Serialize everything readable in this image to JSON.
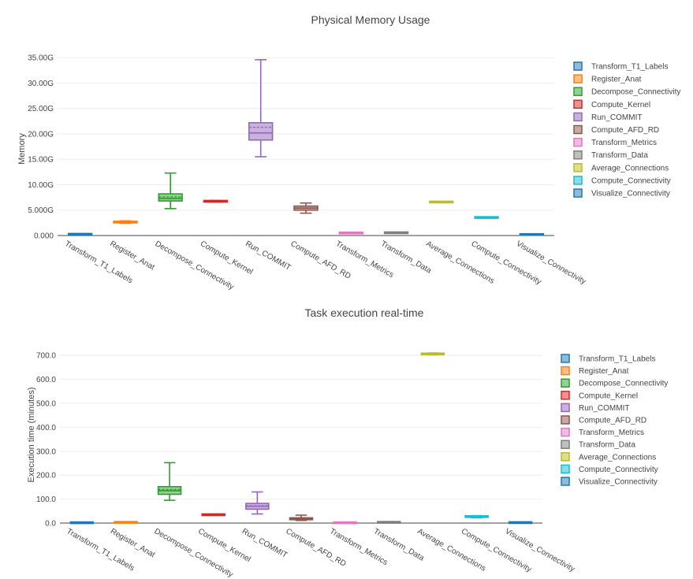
{
  "chart_data": [
    {
      "type": "box",
      "title": "Physical Memory Usage",
      "xlabel": "",
      "ylabel": "Memory",
      "ylim": [
        0,
        35.5
      ],
      "ytick_values": [
        0,
        5,
        10,
        15,
        20,
        25,
        30,
        35
      ],
      "ytick_labels": [
        "0.000",
        "5.000G",
        "10.00G",
        "15.00G",
        "20.00G",
        "25.00G",
        "30.00G",
        "35.00G"
      ],
      "grid": true,
      "legend_position": "right",
      "categories": [
        "Transform_T1_Labels",
        "Register_Anat",
        "Decompose_Connectivity",
        "Compute_Kernel",
        "Run_COMMIT",
        "Compute_AFD_RD",
        "Transform_Metrics",
        "Transform_Data",
        "Average_Connections",
        "Compute_Connectivity",
        "Visualize_Connectivity"
      ],
      "colors": [
        "#1f77b4",
        "#ff7f0e",
        "#2ca02c",
        "#d62728",
        "#9467bd",
        "#8c564b",
        "#e377c2",
        "#7f7f7f",
        "#bcbd22",
        "#17becf",
        "#1f77b4"
      ],
      "series": [
        {
          "name": "Transform_T1_Labels",
          "min": 0.15,
          "q1": 0.2,
          "median": 0.25,
          "mean": 0.25,
          "q3": 0.3,
          "max": 0.35
        },
        {
          "name": "Register_Anat",
          "min": 2.4,
          "q1": 2.55,
          "median": 2.65,
          "mean": 2.65,
          "q3": 2.75,
          "max": 2.9
        },
        {
          "name": "Decompose_Connectivity",
          "min": 5.3,
          "q1": 6.8,
          "median": 7.3,
          "mean": 7.6,
          "q3": 8.2,
          "max": 12.3
        },
        {
          "name": "Compute_Kernel",
          "min": 6.6,
          "q1": 6.7,
          "median": 6.75,
          "mean": 6.75,
          "q3": 6.8,
          "max": 6.9
        },
        {
          "name": "Run_COMMIT",
          "min": 15.5,
          "q1": 18.8,
          "median": 20.2,
          "mean": 21.3,
          "q3": 22.2,
          "max": 34.6
        },
        {
          "name": "Compute_AFD_RD",
          "min": 4.4,
          "q1": 5.0,
          "median": 5.4,
          "mean": 5.4,
          "q3": 5.8,
          "max": 6.4
        },
        {
          "name": "Transform_Metrics",
          "min": 0.35,
          "q1": 0.45,
          "median": 0.5,
          "mean": 0.5,
          "q3": 0.55,
          "max": 0.6
        },
        {
          "name": "Transform_Data",
          "min": 0.45,
          "q1": 0.5,
          "median": 0.55,
          "mean": 0.55,
          "q3": 0.6,
          "max": 0.65
        },
        {
          "name": "Average_Connections",
          "min": 6.5,
          "q1": 6.55,
          "median": 6.6,
          "mean": 6.6,
          "q3": 6.65,
          "max": 6.7
        },
        {
          "name": "Compute_Connectivity",
          "min": 3.45,
          "q1": 3.5,
          "median": 3.55,
          "mean": 3.55,
          "q3": 3.6,
          "max": 3.65
        },
        {
          "name": "Visualize_Connectivity",
          "min": 0.1,
          "q1": 0.15,
          "median": 0.2,
          "mean": 0.2,
          "q3": 0.25,
          "max": 0.3
        }
      ]
    },
    {
      "type": "box",
      "title": "Task execution real-time",
      "xlabel": "",
      "ylabel": "Execution time (minutes)",
      "ylim": [
        0,
        720
      ],
      "ytick_values": [
        0,
        100,
        200,
        300,
        400,
        500,
        600,
        700
      ],
      "ytick_labels": [
        "0.0",
        "100.0",
        "200.0",
        "300.0",
        "400.0",
        "500.0",
        "600.0",
        "700.0"
      ],
      "grid": true,
      "legend_position": "right",
      "categories": [
        "Transform_T1_Labels",
        "Register_Anat",
        "Decompose_Connectivity",
        "Compute_Kernel",
        "Run_COMMIT",
        "Compute_AFD_RD",
        "Transform_Metrics",
        "Transform_Data",
        "Average_Connections",
        "Compute_Connectivity",
        "Visualize_Connectivity"
      ],
      "colors": [
        "#1f77b4",
        "#ff7f0e",
        "#2ca02c",
        "#d62728",
        "#9467bd",
        "#8c564b",
        "#e377c2",
        "#7f7f7f",
        "#bcbd22",
        "#17becf",
        "#1f77b4"
      ],
      "series": [
        {
          "name": "Transform_T1_Labels",
          "min": 0.5,
          "q1": 1,
          "median": 1.5,
          "mean": 1.5,
          "q3": 2,
          "max": 2.5
        },
        {
          "name": "Register_Anat",
          "min": 1,
          "q1": 2,
          "median": 3,
          "mean": 3,
          "q3": 4,
          "max": 5
        },
        {
          "name": "Decompose_Connectivity",
          "min": 95,
          "q1": 120,
          "median": 135,
          "mean": 140,
          "q3": 152,
          "max": 252
        },
        {
          "name": "Compute_Kernel",
          "min": 33,
          "q1": 34,
          "median": 35,
          "mean": 35,
          "q3": 36,
          "max": 37
        },
        {
          "name": "Run_COMMIT",
          "min": 38,
          "q1": 58,
          "median": 70,
          "mean": 72,
          "q3": 82,
          "max": 130
        },
        {
          "name": "Compute_AFD_RD",
          "min": 11,
          "q1": 14,
          "median": 17,
          "mean": 18,
          "q3": 22,
          "max": 33
        },
        {
          "name": "Transform_Metrics",
          "min": 0.5,
          "q1": 1,
          "median": 1.5,
          "mean": 1.5,
          "q3": 2,
          "max": 2.5
        },
        {
          "name": "Transform_Data",
          "min": 1,
          "q1": 2,
          "median": 3,
          "mean": 3,
          "q3": 4,
          "max": 6
        },
        {
          "name": "Average_Connections",
          "min": 702,
          "q1": 704,
          "median": 706,
          "mean": 706,
          "q3": 708,
          "max": 710
        },
        {
          "name": "Compute_Connectivity",
          "min": 22,
          "q1": 25,
          "median": 27,
          "mean": 27,
          "q3": 29,
          "max": 31
        },
        {
          "name": "Visualize_Connectivity",
          "min": 0.5,
          "q1": 1,
          "median": 2,
          "mean": 2,
          "q3": 3,
          "max": 4
        }
      ]
    }
  ]
}
